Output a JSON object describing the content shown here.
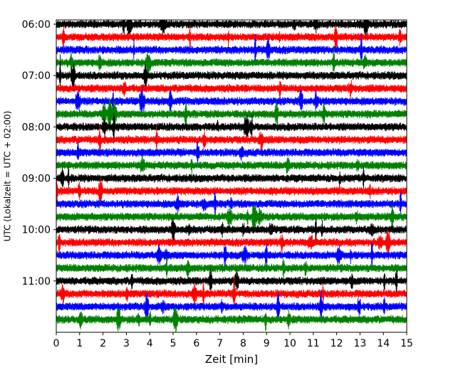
{
  "chart_data": {
    "type": "line",
    "title": "",
    "xlabel": "Zeit  [min]",
    "ylabel": "UTC (Lokalzeit = UTC + 02:00)",
    "xlim": [
      0,
      15
    ],
    "x_ticks": [
      "0",
      "1",
      "2",
      "3",
      "4",
      "5",
      "6",
      "7",
      "8",
      "9",
      "10",
      "11",
      "12",
      "13",
      "14",
      "15"
    ],
    "ylim_time": [
      "05:55",
      "12:00"
    ],
    "y_ticks": [
      "06:00",
      "07:00",
      "08:00",
      "09:00",
      "10:00",
      "11:00"
    ],
    "trace_interval_minutes": 15,
    "trace_start": "06:00",
    "trace_count": 24,
    "trace_colors": [
      "#000000",
      "#ff0000",
      "#0000ff",
      "#008000"
    ],
    "grid": false,
    "legend": "none"
  }
}
